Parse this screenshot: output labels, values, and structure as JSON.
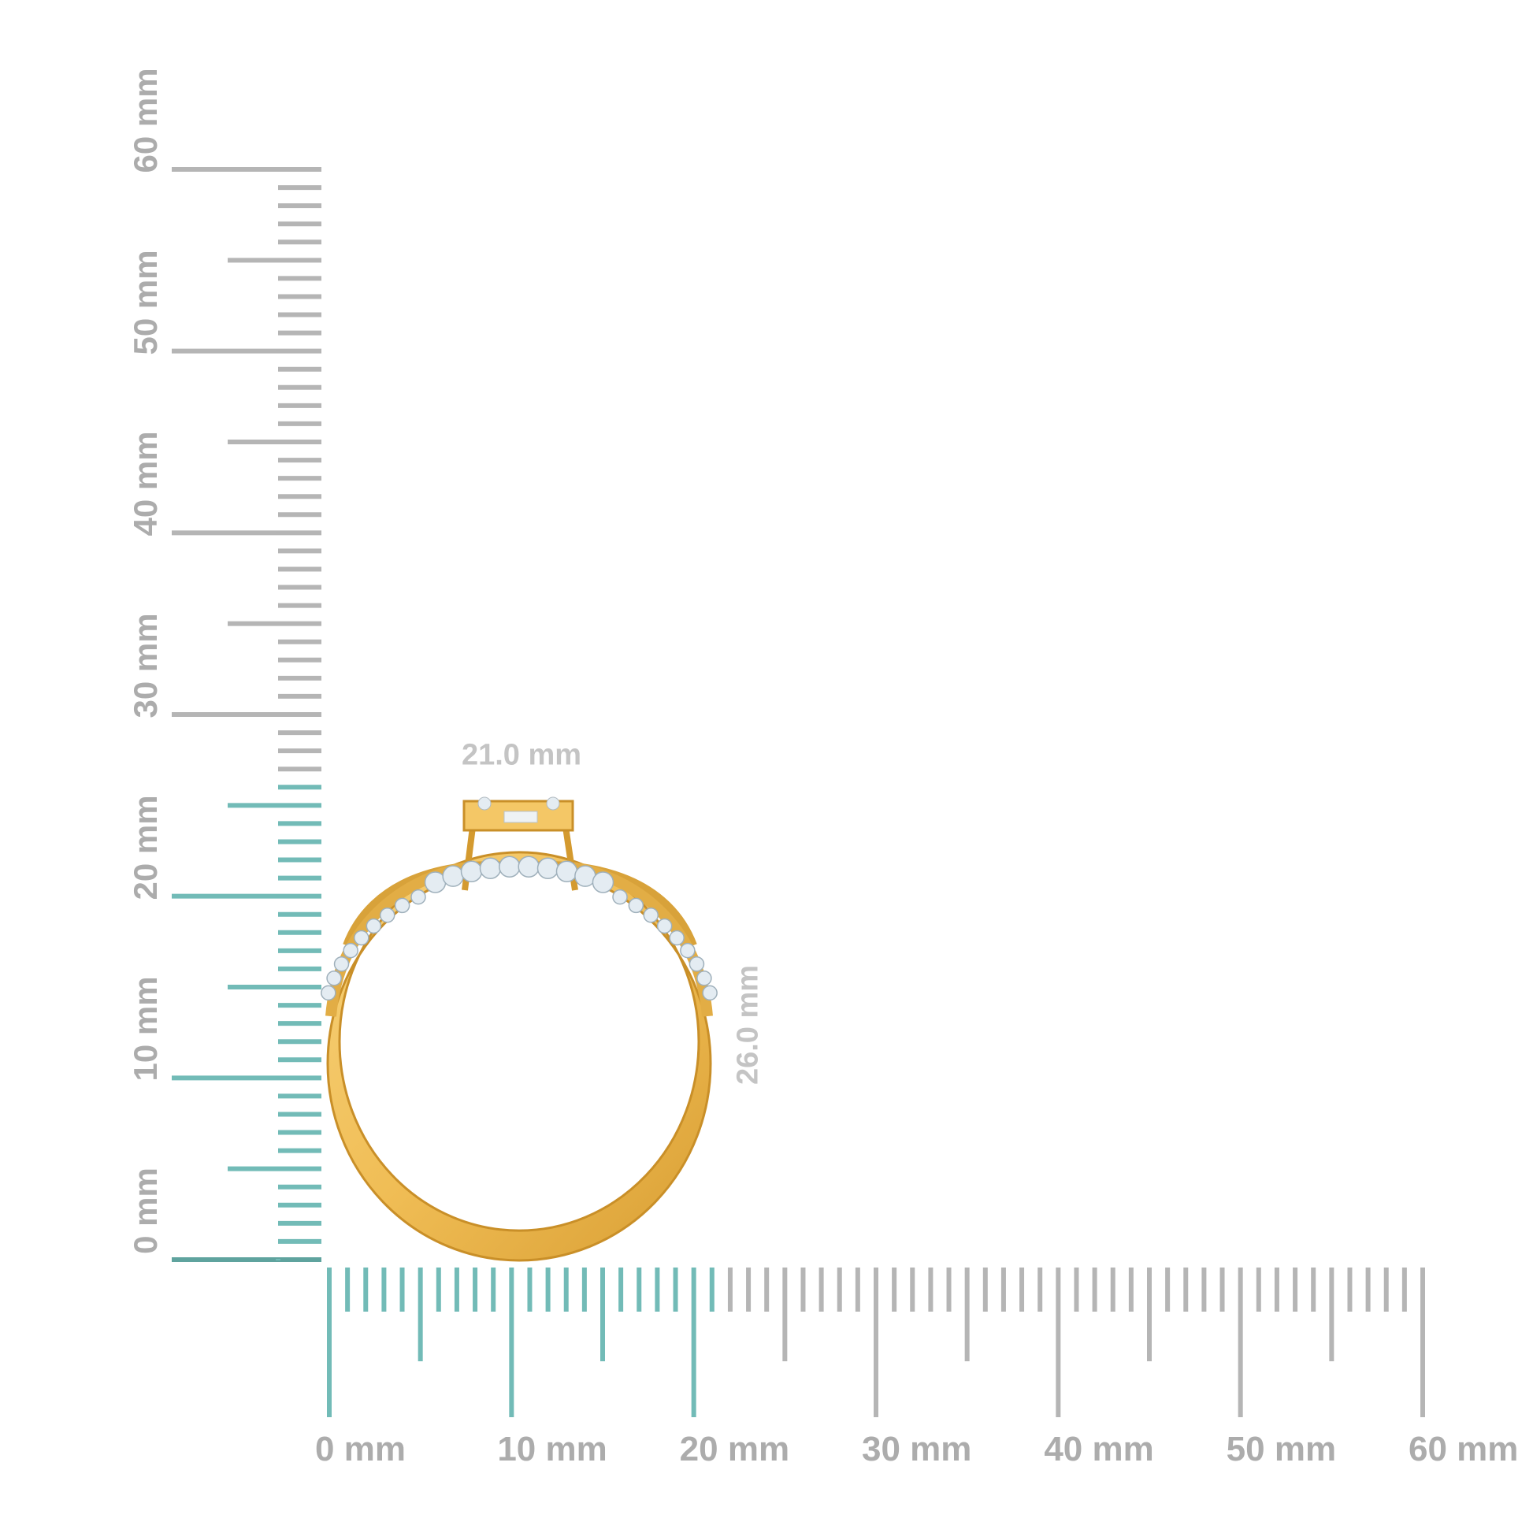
{
  "rulers": {
    "unit": "mm",
    "vertical_labels": [
      "0 mm",
      "10 mm",
      "20 mm",
      "30 mm",
      "40 mm",
      "50 mm",
      "60 mm"
    ],
    "horizontal_labels": [
      "0 mm",
      "10 mm",
      "20 mm",
      "30 mm",
      "40 mm",
      "50 mm",
      "60 mm"
    ],
    "range_mm": [
      0,
      60
    ],
    "minor_step_mm": 1,
    "highlight_height_mm": 26,
    "highlight_width_mm": 21
  },
  "dimensions": {
    "width_label": "21.0 mm",
    "height_label": "26.0 mm"
  },
  "colors": {
    "highlight_tick": "#72bbb7",
    "highlight_tick_dark": "#5fa39e",
    "tick": "#b5b5b5",
    "label": "#acacac",
    "dimension_label": "#c4c4c4",
    "gold": "#f2c25c",
    "gold_dark": "#d49a2f",
    "diamond": "#e4ecf2"
  }
}
